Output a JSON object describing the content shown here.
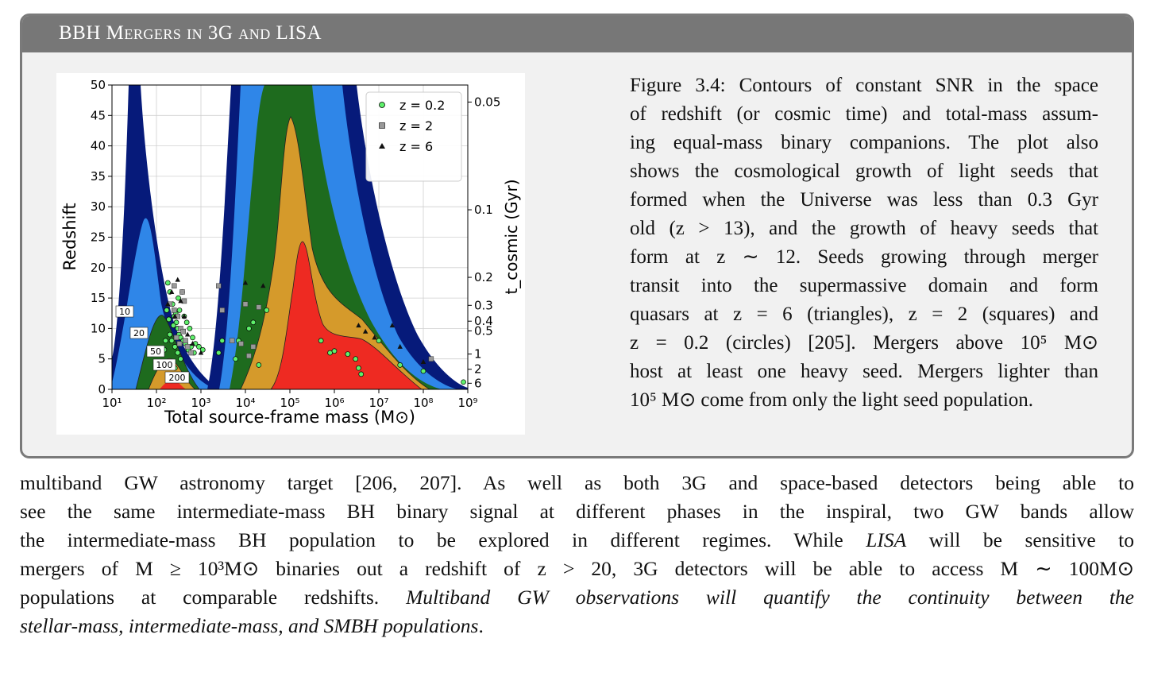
{
  "box": {
    "title": "BBH Mergers in 3G and LISA"
  },
  "caption": {
    "lines": [
      "Figure 3.4: Contours of constant SNR in the space",
      "of redshift (or cosmic time) and total-mass assum-",
      "ing equal-mass binary companions. The plot also",
      "shows the cosmological growth of light seeds that",
      "formed when the Universe was less than 0.3 Gyr",
      "old (z > 13), and the growth of heavy seeds that",
      "form at z ∼ 12. Seeds growing through merger",
      "transit into the supermassive domain and form",
      "quasars at z = 6 (triangles), z = 2 (squares) and",
      "z = 0.2 (circles) [205].  Mergers above 10⁵ M⊙",
      "host at least one heavy seed. Mergers lighter than",
      "10⁵ M⊙ come from only the light seed population."
    ]
  },
  "body": {
    "line1": "multiband GW astronomy target [206, 207]. As well as both 3G and space-based detectors being able to",
    "line2": "see the same intermediate-mass BH binary signal at different phases in the inspiral, two GW bands allow",
    "line3": "the intermediate-mass BH population to be explored in different regimes. While",
    "line3_italic": "LISA",
    "line3_end": "will be sensitive to",
    "line4": "mergers of M ≥ 10³M⊙ binaries out a redshift of z > 20, 3G detectors will be able to access M ∼ 100M⊙",
    "line5_plain": "populations at comparable redshifts.",
    "line5_italic": "Multiband GW observations will quantify the continuity between the",
    "line6_italic": "stellar-mass, intermediate-mass, and SMBH populations",
    "line6_end": "."
  },
  "chart_data": {
    "type": "scatter",
    "xlabel": "Total source-frame mass (M⊙)",
    "ylabel": "Redshift",
    "y2label": "t_cosmic (Gyr)",
    "xscale": "log",
    "xlim": [
      10,
      1000000000
    ],
    "ylim": [
      0,
      50
    ],
    "x_ticks": [
      "10¹",
      "10²",
      "10³",
      "10⁴",
      "10⁵",
      "10⁶",
      "10⁷",
      "10⁸",
      "10⁹"
    ],
    "y_ticks": [
      0,
      5,
      10,
      15,
      20,
      25,
      30,
      35,
      40,
      45,
      50
    ],
    "y2_ticks": [
      {
        "label": "0.05",
        "z": 47.2
      },
      {
        "label": "0.1",
        "z": 29.5
      },
      {
        "label": "0.2",
        "z": 18.4
      },
      {
        "label": "0.3",
        "z": 13.8
      },
      {
        "label": "0.4",
        "z": 11.2
      },
      {
        "label": "0.5",
        "z": 9.6
      },
      {
        "label": "1",
        "z": 5.8
      },
      {
        "label": "2",
        "z": 3.3
      },
      {
        "label": "6",
        "z": 1.0
      }
    ],
    "grid": true,
    "legend_position": "top-right",
    "snr_contour_labels": [
      "10",
      "20",
      "50",
      "100",
      "200"
    ],
    "snr_colors": [
      "#061a7a",
      "#2f86e8",
      "#1e6b1e",
      "#d59a2b",
      "#ee2a22"
    ],
    "series": [
      {
        "name": "z = 0.2",
        "marker": "circle",
        "color": "#5ef06b",
        "points": [
          [
            180,
            17.5
          ],
          [
            200,
            16
          ],
          [
            230,
            14
          ],
          [
            250,
            12
          ],
          [
            280,
            11
          ],
          [
            300,
            10
          ],
          [
            320,
            9
          ],
          [
            350,
            8.5
          ],
          [
            400,
            8
          ],
          [
            450,
            7.5
          ],
          [
            520,
            6.5
          ],
          [
            600,
            7
          ],
          [
            700,
            6
          ],
          [
            200,
            9
          ],
          [
            220,
            8
          ],
          [
            260,
            7
          ],
          [
            300,
            6
          ],
          [
            350,
            5
          ],
          [
            240,
            10.5
          ],
          [
            270,
            12.5
          ],
          [
            310,
            15
          ],
          [
            420,
            12
          ],
          [
            480,
            11
          ],
          [
            560,
            10
          ],
          [
            650,
            8.5
          ],
          [
            750,
            7.5
          ],
          [
            900,
            7
          ],
          [
            1100,
            6.5
          ],
          [
            170,
            13
          ],
          [
            190,
            11.5
          ],
          [
            160,
            8
          ],
          [
            150,
            6.5
          ],
          [
            220,
            4.5
          ],
          [
            260,
            3.5
          ],
          [
            330,
            13
          ],
          [
            380,
            16
          ],
          [
            2500,
            6
          ],
          [
            3000,
            8
          ],
          [
            6000,
            5
          ],
          [
            7000,
            8
          ],
          [
            12000,
            10
          ],
          [
            15000,
            11
          ],
          [
            30000,
            13
          ],
          [
            20000,
            4
          ],
          [
            500000,
            8
          ],
          [
            800000,
            6
          ],
          [
            1000000,
            6.3
          ],
          [
            2000000,
            5.8
          ],
          [
            3000000,
            5
          ],
          [
            3500000,
            3.5
          ],
          [
            4000000,
            2.5
          ],
          [
            10000000,
            8
          ],
          [
            30000000,
            4
          ],
          [
            100000000,
            3
          ],
          [
            800000000,
            1.2
          ]
        ]
      },
      {
        "name": "z = 2",
        "marker": "square",
        "color": "#999999",
        "points": [
          [
            200,
            14
          ],
          [
            250,
            13
          ],
          [
            300,
            12
          ],
          [
            350,
            10
          ],
          [
            400,
            9.5
          ],
          [
            450,
            8
          ],
          [
            500,
            7
          ],
          [
            600,
            6
          ],
          [
            280,
            8.5
          ],
          [
            330,
            7.5
          ],
          [
            380,
            16
          ],
          [
            420,
            14.5
          ],
          [
            250,
            17
          ],
          [
            2500,
            17
          ],
          [
            3000,
            13
          ],
          [
            5000,
            8
          ],
          [
            8000,
            7.5
          ],
          [
            10000,
            14
          ],
          [
            15000,
            7
          ],
          [
            20000,
            13.5
          ],
          [
            12000,
            5.5
          ],
          [
            150000000,
            5
          ]
        ]
      },
      {
        "name": "z = 6",
        "marker": "triangle",
        "color": "#111111",
        "points": [
          [
            180,
            14
          ],
          [
            220,
            16
          ],
          [
            260,
            12
          ],
          [
            300,
            18
          ],
          [
            350,
            14.5
          ],
          [
            420,
            12
          ],
          [
            500,
            9
          ],
          [
            650,
            7.5
          ],
          [
            1000,
            6
          ],
          [
            10000,
            17.5
          ],
          [
            25000,
            17
          ],
          [
            3500000,
            10.5
          ],
          [
            5000000,
            9.5
          ],
          [
            8000000,
            8.5
          ],
          [
            20000000,
            10.5
          ],
          [
            30000000,
            7
          ],
          [
            100000000,
            4.5
          ]
        ]
      }
    ]
  }
}
